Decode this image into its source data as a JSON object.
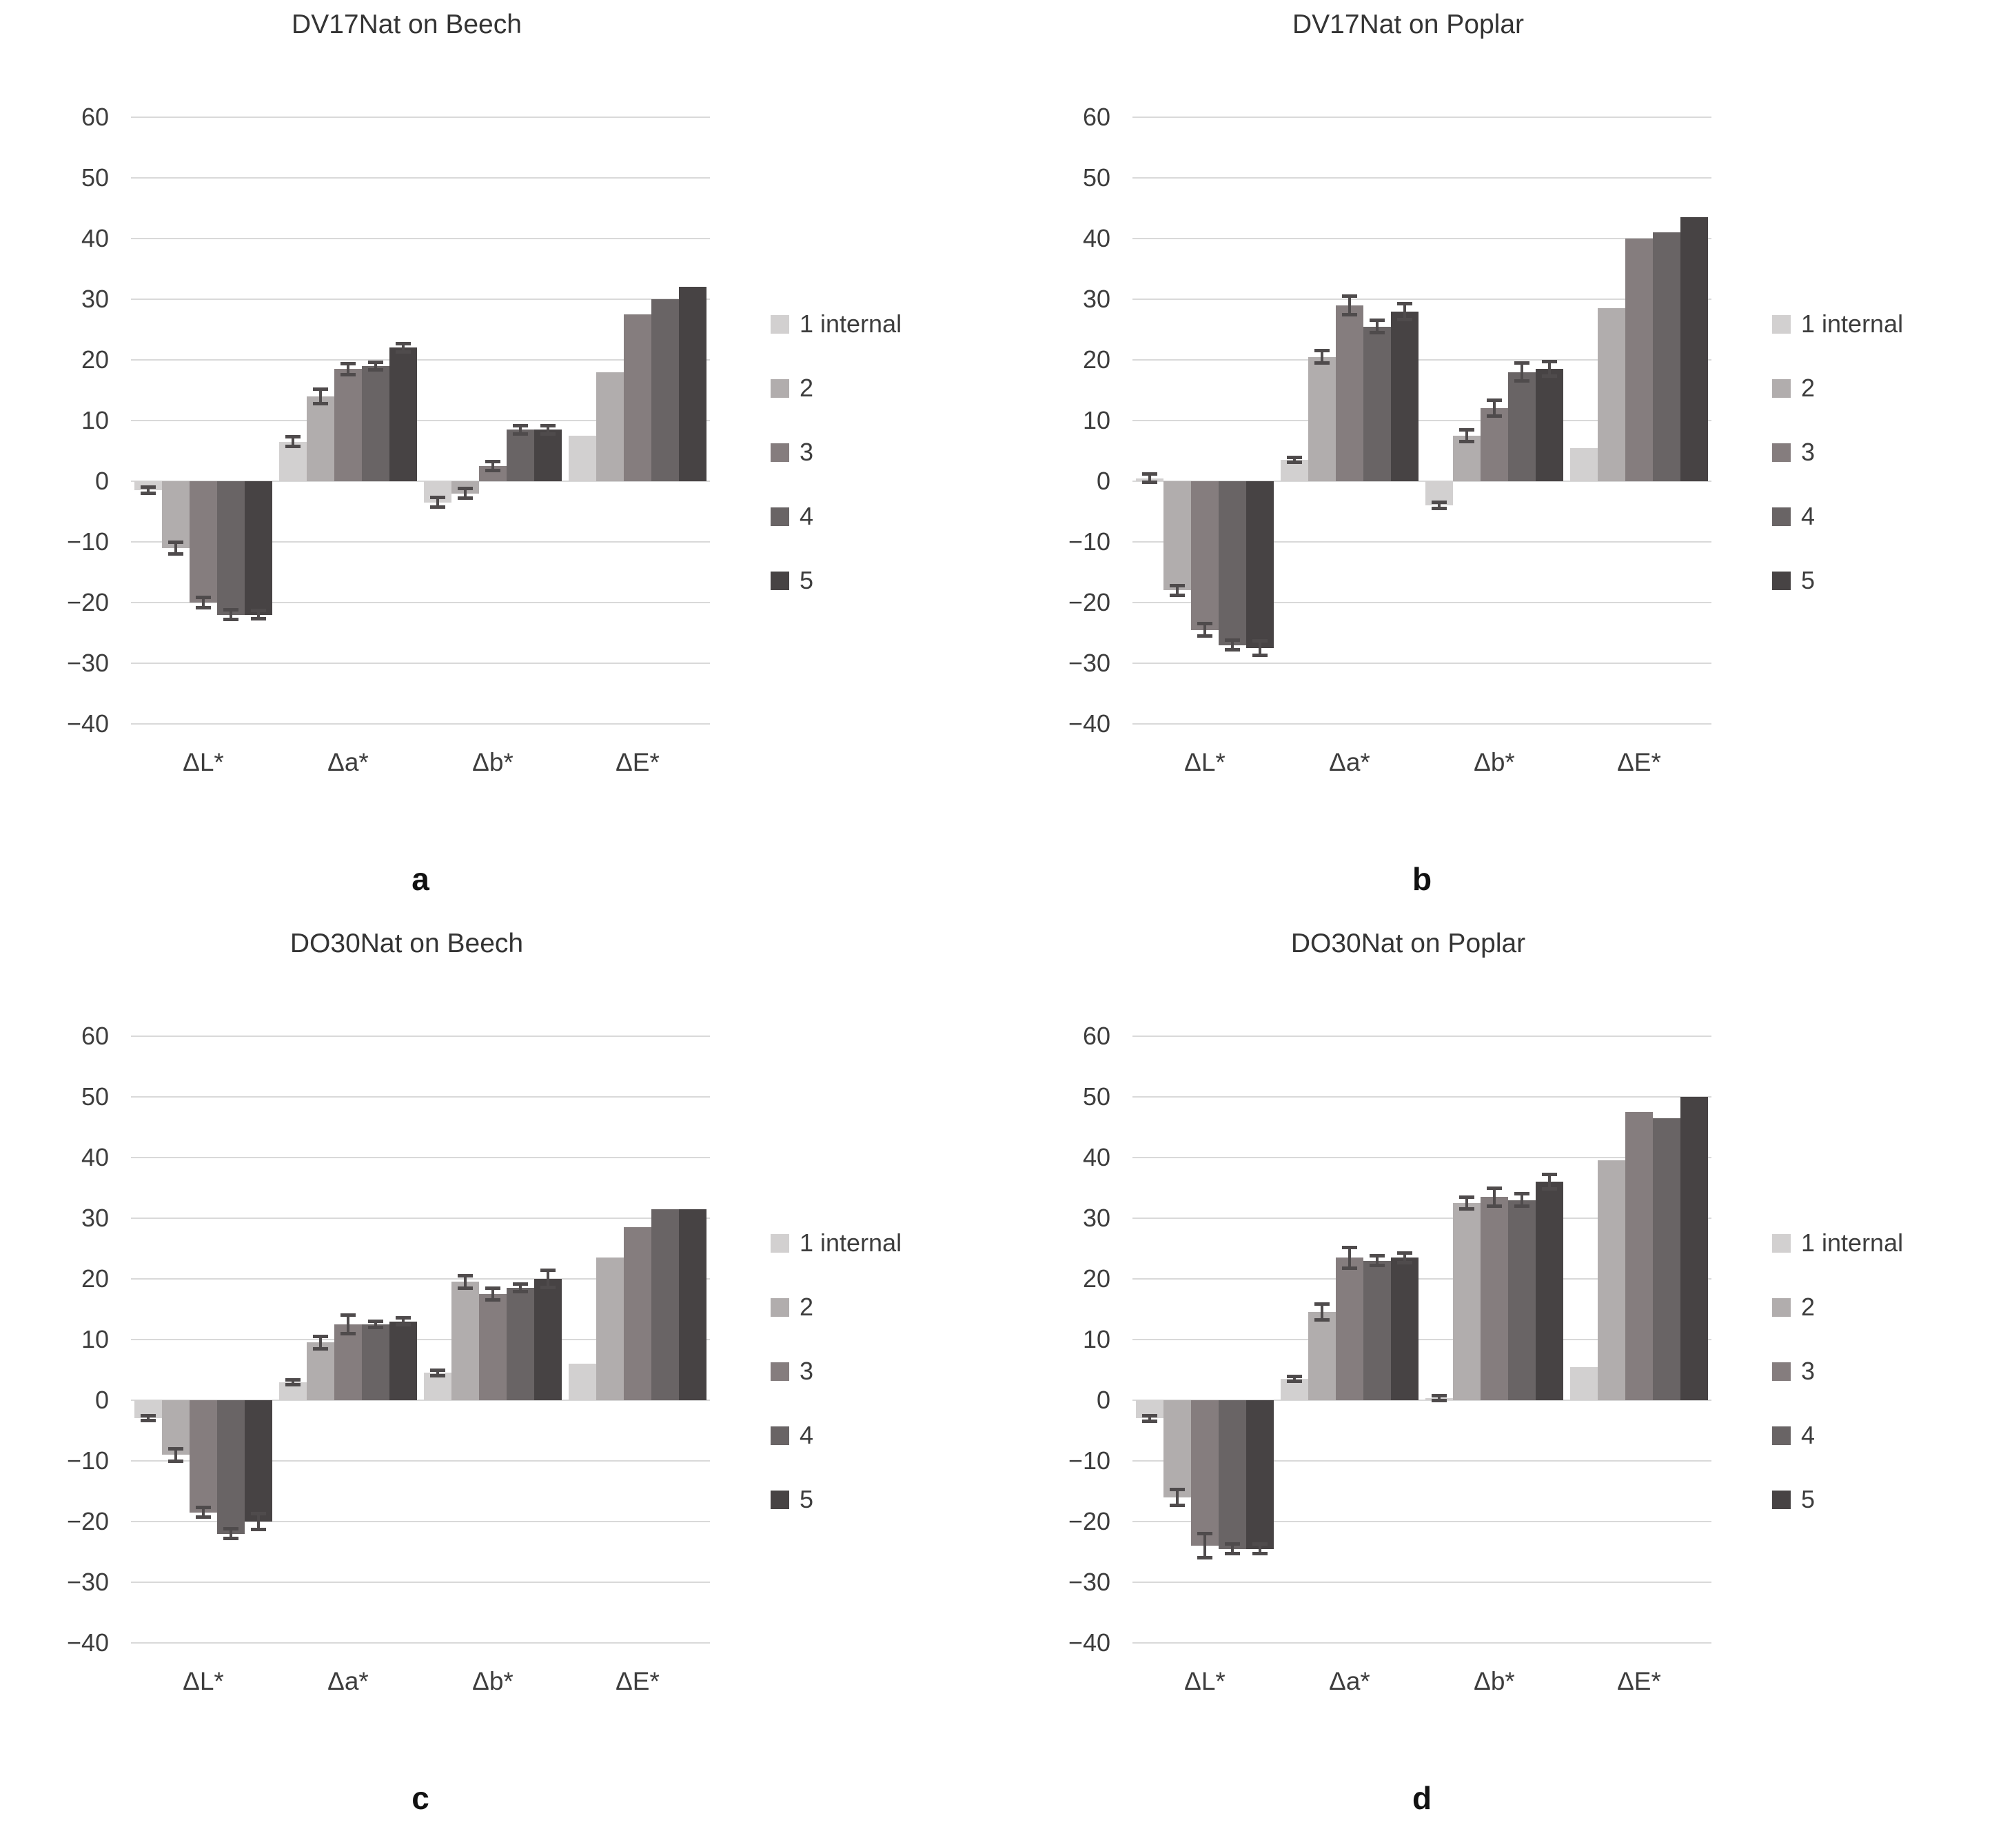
{
  "y_axis": {
    "min": -40,
    "max": 60,
    "step": 10,
    "ticks": [
      "60",
      "50",
      "40",
      "30",
      "20",
      "10",
      "0",
      "−10",
      "−20",
      "−30",
      "−40"
    ]
  },
  "legend": {
    "items": [
      {
        "label": "1 internal",
        "color": "#d2d0d0"
      },
      {
        "label": "2",
        "color": "#b1adad"
      },
      {
        "label": "3",
        "color": "#857d7e"
      },
      {
        "label": "4",
        "color": "#696465"
      },
      {
        "label": "5",
        "color": "#474344"
      }
    ]
  },
  "chart_data": [
    {
      "type": "bar",
      "panel_label": "a",
      "title": "DV17Nat on Beech",
      "categories": [
        "ΔL*",
        "Δa*",
        "Δb*",
        "ΔE*"
      ],
      "ylim": [
        -40,
        60
      ],
      "grid": true,
      "legend_position": "right",
      "series": [
        {
          "name": "1 internal",
          "color": "#d2d0d0",
          "values": [
            -1.5,
            6.5,
            -3.5,
            7.5
          ],
          "errors": [
            0.5,
            0.8,
            0.8,
            0
          ]
        },
        {
          "name": "2",
          "color": "#b1adad",
          "values": [
            -11,
            14,
            -2,
            18
          ],
          "errors": [
            1,
            1.2,
            0.8,
            0
          ]
        },
        {
          "name": "3",
          "color": "#857d7e",
          "values": [
            -20,
            18.5,
            2.5,
            27.5
          ],
          "errors": [
            0.8,
            0.9,
            0.7,
            0
          ]
        },
        {
          "name": "4",
          "color": "#696465",
          "values": [
            -22,
            19,
            8.5,
            30
          ],
          "errors": [
            0.8,
            0.6,
            0.7,
            0
          ]
        },
        {
          "name": "5",
          "color": "#474344",
          "values": [
            -22,
            22,
            8.5,
            32
          ],
          "errors": [
            0.7,
            0.7,
            0.7,
            0
          ]
        }
      ]
    },
    {
      "type": "bar",
      "panel_label": "b",
      "title": "DV17Nat on Poplar",
      "categories": [
        "ΔL*",
        "Δa*",
        "Δb*",
        "ΔE*"
      ],
      "ylim": [
        -40,
        60
      ],
      "grid": true,
      "legend_position": "right",
      "series": [
        {
          "name": "1 internal",
          "color": "#d2d0d0",
          "values": [
            0.5,
            3.5,
            -4,
            5.5
          ],
          "errors": [
            0.7,
            0.4,
            0.5,
            0
          ]
        },
        {
          "name": "2",
          "color": "#b1adad",
          "values": [
            -18,
            20.5,
            7.5,
            28.5
          ],
          "errors": [
            0.8,
            1,
            1,
            0
          ]
        },
        {
          "name": "3",
          "color": "#857d7e",
          "values": [
            -24.5,
            29,
            12,
            40
          ],
          "errors": [
            1,
            1.5,
            1.3,
            0
          ]
        },
        {
          "name": "4",
          "color": "#696465",
          "values": [
            -27,
            25.5,
            18,
            41
          ],
          "errors": [
            0.8,
            1,
            1.5,
            0
          ]
        },
        {
          "name": "5",
          "color": "#474344",
          "values": [
            -27.5,
            28,
            18.5,
            43.5
          ],
          "errors": [
            1.2,
            1.3,
            1.2,
            0
          ]
        }
      ]
    },
    {
      "type": "bar",
      "panel_label": "c",
      "title": "DO30Nat on Beech",
      "categories": [
        "ΔL*",
        "Δa*",
        "Δb*",
        "ΔE*"
      ],
      "ylim": [
        -40,
        60
      ],
      "grid": true,
      "legend_position": "right",
      "series": [
        {
          "name": "1 internal",
          "color": "#d2d0d0",
          "values": [
            -3,
            3,
            4.5,
            6
          ],
          "errors": [
            0.4,
            0.4,
            0.5,
            0
          ]
        },
        {
          "name": "2",
          "color": "#b1adad",
          "values": [
            -9,
            9.5,
            19.5,
            23.5
          ],
          "errors": [
            1,
            1,
            1,
            0
          ]
        },
        {
          "name": "3",
          "color": "#857d7e",
          "values": [
            -18.5,
            12.5,
            17.5,
            28.5
          ],
          "errors": [
            0.8,
            1.5,
            1,
            0
          ]
        },
        {
          "name": "4",
          "color": "#696465",
          "values": [
            -22,
            12.5,
            18.5,
            31.5
          ],
          "errors": [
            0.8,
            0.5,
            0.6,
            0
          ]
        },
        {
          "name": "5",
          "color": "#474344",
          "values": [
            -20,
            13,
            20,
            31.5
          ],
          "errors": [
            1.3,
            0.6,
            1.4,
            0
          ]
        }
      ]
    },
    {
      "type": "bar",
      "panel_label": "d",
      "title": "DO30Nat on Poplar",
      "categories": [
        "ΔL*",
        "Δa*",
        "Δb*",
        "ΔE*"
      ],
      "ylim": [
        -40,
        60
      ],
      "grid": true,
      "legend_position": "right",
      "series": [
        {
          "name": "1 internal",
          "color": "#d2d0d0",
          "values": [
            -3,
            3.5,
            0.3,
            5.5
          ],
          "errors": [
            0.5,
            0.4,
            0.4,
            0
          ]
        },
        {
          "name": "2",
          "color": "#b1adad",
          "values": [
            -16,
            14.5,
            32.5,
            39.5
          ],
          "errors": [
            1.3,
            1.3,
            1,
            0
          ]
        },
        {
          "name": "3",
          "color": "#857d7e",
          "values": [
            -24,
            23.5,
            33.5,
            47.5
          ],
          "errors": [
            2,
            1.7,
            1.5,
            0
          ]
        },
        {
          "name": "4",
          "color": "#696465",
          "values": [
            -24.5,
            23,
            33,
            46.5
          ],
          "errors": [
            0.8,
            0.8,
            1,
            0
          ]
        },
        {
          "name": "5",
          "color": "#474344",
          "values": [
            -24.5,
            23.5,
            36,
            50
          ],
          "errors": [
            0.8,
            0.8,
            1.2,
            0
          ]
        }
      ]
    }
  ]
}
